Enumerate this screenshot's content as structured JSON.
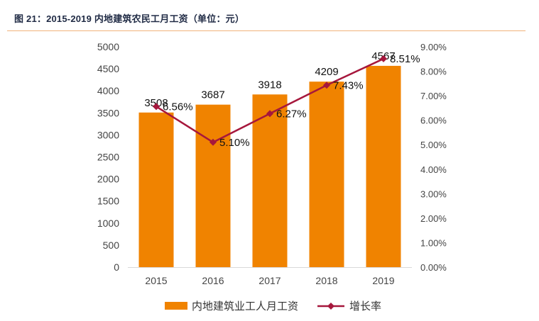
{
  "header": {
    "title": "图 21：2015-2019 内地建筑农民工月工资（单位：元）"
  },
  "colors": {
    "bar": "#F08300",
    "line": "#A6173C",
    "axis": "#d9d9d9",
    "text": "#444444"
  },
  "chart_data": {
    "type": "bar",
    "title": "图 21：2015-2019 内地建筑农民工月工资（单位：元）",
    "categories": [
      "2015",
      "2016",
      "2017",
      "2018",
      "2019"
    ],
    "series": [
      {
        "name": "内地建筑业工人月工资",
        "type": "bar",
        "axis": "left",
        "values": [
          3508,
          3687,
          3918,
          4209,
          4567
        ],
        "labels": [
          "3508",
          "3687",
          "3918",
          "4209",
          "4567"
        ]
      },
      {
        "name": "增长率",
        "type": "line",
        "axis": "right",
        "values": [
          6.56,
          5.1,
          6.27,
          7.43,
          8.51
        ],
        "labels": [
          "6.56%",
          "5.10%",
          "6.27%",
          "7.43%",
          "8.51%"
        ]
      }
    ],
    "y_left": {
      "min": 0,
      "max": 5000,
      "ticks": [
        "0",
        "500",
        "1000",
        "1500",
        "2000",
        "2500",
        "3000",
        "3500",
        "4000",
        "4500",
        "5000"
      ]
    },
    "y_right": {
      "min": 0,
      "max": 9,
      "ticks": [
        "0.00%",
        "1.00%",
        "2.00%",
        "3.00%",
        "4.00%",
        "5.00%",
        "6.00%",
        "7.00%",
        "8.00%",
        "9.00%"
      ]
    },
    "legend": [
      "内地建筑业工人月工资",
      "增长率"
    ],
    "legend_position": "bottom"
  }
}
